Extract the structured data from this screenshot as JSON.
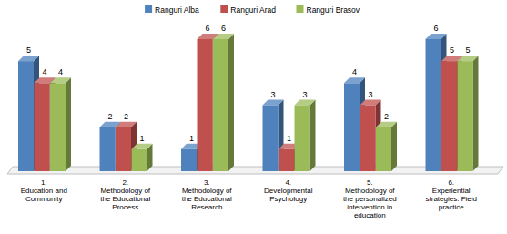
{
  "chart_data": {
    "type": "bar",
    "categories": [
      "1.\nEducation and\nCommunity",
      "2.\nMethodology of\nthe Educational\nProcess",
      "3.\nMethodology of\nthe Educational\nResearch",
      "4.\nDevelopmental\nPsychology",
      "5.\nMethodology of\nthe personalized\nintervention in\neducation",
      "6.\nExperiential\nstrategies. Field\npractice"
    ],
    "series": [
      {
        "name": "Ranguri Alba",
        "color": "#4f81bd",
        "values": [
          5,
          2,
          1,
          3,
          4,
          6
        ]
      },
      {
        "name": "Ranguri Arad",
        "color": "#c0504d",
        "values": [
          4,
          2,
          6,
          1,
          3,
          5
        ]
      },
      {
        "name": "Ranguri Brasov",
        "color": "#9bbb59",
        "values": [
          4,
          1,
          6,
          3,
          2,
          5
        ]
      }
    ],
    "ylim": [
      0,
      6
    ],
    "data_labels": true,
    "tick_labels": "x",
    "legend": "top"
  }
}
